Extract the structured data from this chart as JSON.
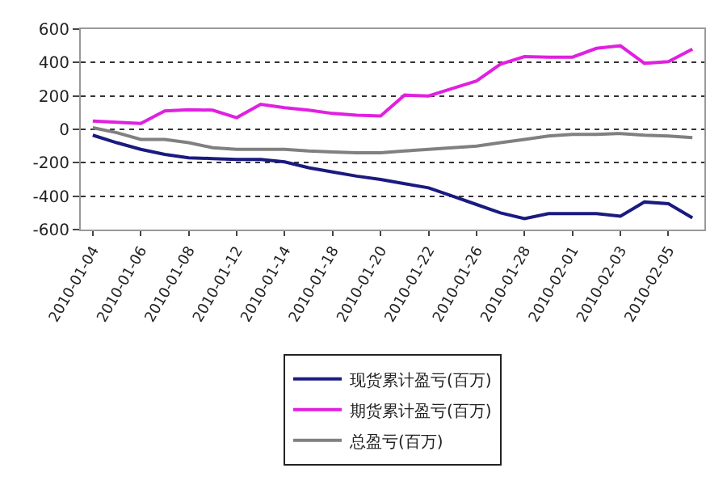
{
  "chart_data": {
    "type": "line",
    "categories": [
      "2010-01-04",
      null,
      "2010-01-06",
      null,
      "2010-01-08",
      null,
      "2010-01-12",
      null,
      "2010-01-14",
      null,
      "2010-01-18",
      null,
      "2010-01-20",
      null,
      "2010-01-22",
      null,
      "2010-01-26",
      null,
      "2010-01-28",
      null,
      "2010-02-01",
      null,
      "2010-02-03",
      null,
      "2010-02-05",
      null
    ],
    "series": [
      {
        "name": "现货累计盈亏(百万)",
        "color": "#1a1a80",
        "values": [
          -35,
          -80,
          -120,
          -150,
          -170,
          -175,
          -180,
          -180,
          -195,
          -230,
          -255,
          -280,
          -300,
          -325,
          -350,
          -400,
          -450,
          -500,
          -535,
          -505,
          -505,
          -505,
          -520,
          -435,
          -445,
          -530
        ]
      },
      {
        "name": "期货累计盈亏(百万)",
        "color": "#e020e0",
        "values": [
          50,
          42,
          35,
          110,
          117,
          115,
          70,
          150,
          130,
          115,
          95,
          85,
          80,
          205,
          200,
          245,
          290,
          390,
          435,
          432,
          432,
          485,
          500,
          395,
          405,
          480
        ]
      },
      {
        "name": "总盈亏(百万)",
        "color": "#808080",
        "values": [
          10,
          -20,
          -60,
          -60,
          -80,
          -110,
          -120,
          -120,
          -120,
          -130,
          -135,
          -140,
          -140,
          -130,
          -120,
          -110,
          -100,
          -80,
          -60,
          -40,
          -30,
          -30,
          -25,
          -35,
          -40,
          -50
        ]
      }
    ],
    "ylim": [
      -600,
      600
    ],
    "yticks": [
      -600,
      -400,
      -200,
      0,
      200,
      400,
      600
    ],
    "grid": "y",
    "legend": "bottom",
    "line_style": "solid"
  }
}
